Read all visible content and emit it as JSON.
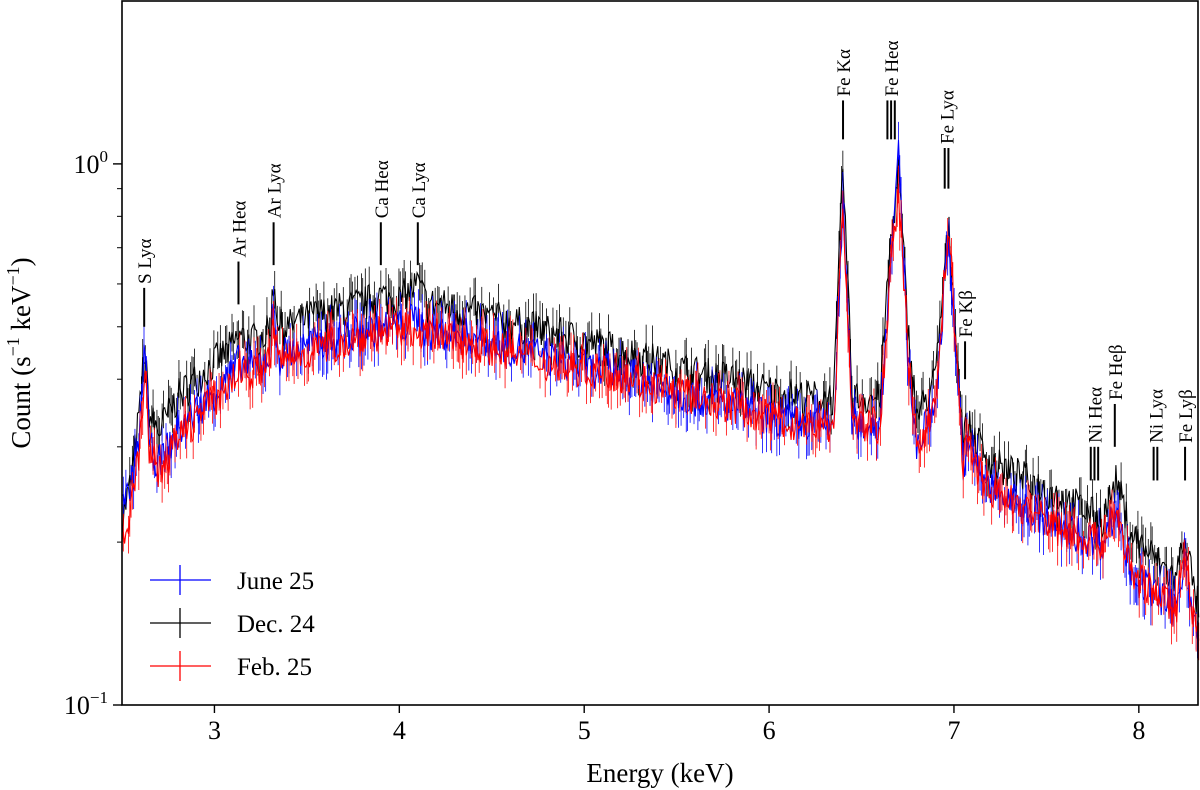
{
  "chart_data": {
    "type": "line",
    "title": "",
    "xlabel": "Energy (keV)",
    "ylabel": "Count (s⁻¹ keV⁻¹)",
    "ylabel_parts": {
      "base": "Count (s",
      "exp1": "−1",
      "mid": " keV",
      "exp2": "−1",
      "end": ")"
    },
    "xlim": [
      2.5,
      8.32
    ],
    "ylim": [
      0.1,
      2.0
    ],
    "yscale": "log",
    "grid": false,
    "legend_placement": "lower-left",
    "xticks": [
      {
        "value": 3,
        "label": "3"
      },
      {
        "value": 4,
        "label": "4"
      },
      {
        "value": 5,
        "label": "5"
      },
      {
        "value": 6,
        "label": "6"
      },
      {
        "value": 7,
        "label": "7"
      },
      {
        "value": 8,
        "label": "8"
      }
    ],
    "yticks": [
      {
        "value": 1.0,
        "base": "10",
        "exp": "0"
      },
      {
        "value": 0.1,
        "base": "10",
        "exp": "−1"
      }
    ],
    "x": [
      2.5,
      2.55,
      2.6,
      2.62,
      2.65,
      2.7,
      2.8,
      2.9,
      3.0,
      3.1,
      3.13,
      3.2,
      3.3,
      3.32,
      3.35,
      3.4,
      3.5,
      3.6,
      3.7,
      3.8,
      3.9,
      4.0,
      4.1,
      4.15,
      4.2,
      4.4,
      4.6,
      4.8,
      5.0,
      5.2,
      5.4,
      5.6,
      5.8,
      6.0,
      6.2,
      6.35,
      6.4,
      6.45,
      6.6,
      6.65,
      6.7,
      6.75,
      6.8,
      6.9,
      6.97,
      7.05,
      7.07,
      7.2,
      7.4,
      7.6,
      7.8,
      7.88,
      7.95,
      8.0,
      8.2,
      8.25,
      8.3,
      8.33
    ],
    "series": [
      {
        "name": "June 25",
        "color": "#0000ff",
        "values": [
          0.23,
          0.25,
          0.33,
          0.47,
          0.3,
          0.28,
          0.32,
          0.35,
          0.38,
          0.41,
          0.43,
          0.42,
          0.44,
          0.52,
          0.44,
          0.45,
          0.46,
          0.47,
          0.48,
          0.49,
          0.5,
          0.5,
          0.52,
          0.49,
          0.49,
          0.48,
          0.46,
          0.44,
          0.42,
          0.41,
          0.39,
          0.37,
          0.36,
          0.34,
          0.33,
          0.33,
          0.85,
          0.33,
          0.33,
          0.62,
          1.03,
          0.45,
          0.3,
          0.36,
          0.75,
          0.28,
          0.3,
          0.25,
          0.23,
          0.21,
          0.2,
          0.23,
          0.18,
          0.17,
          0.15,
          0.19,
          0.14,
          0.13
        ]
      },
      {
        "name": "Dec. 24",
        "color": "#000000",
        "values": [
          0.22,
          0.26,
          0.36,
          0.46,
          0.34,
          0.32,
          0.37,
          0.4,
          0.43,
          0.46,
          0.48,
          0.47,
          0.49,
          0.61,
          0.5,
          0.5,
          0.52,
          0.53,
          0.54,
          0.55,
          0.57,
          0.56,
          0.6,
          0.55,
          0.55,
          0.53,
          0.51,
          0.49,
          0.47,
          0.45,
          0.43,
          0.41,
          0.4,
          0.38,
          0.37,
          0.37,
          1.0,
          0.37,
          0.37,
          0.67,
          0.98,
          0.5,
          0.34,
          0.4,
          0.77,
          0.31,
          0.33,
          0.28,
          0.26,
          0.24,
          0.22,
          0.26,
          0.21,
          0.2,
          0.17,
          0.21,
          0.16,
          0.15
        ]
      },
      {
        "name": "Feb. 25",
        "color": "#ff0000",
        "values": [
          0.19,
          0.23,
          0.31,
          0.42,
          0.29,
          0.27,
          0.31,
          0.34,
          0.37,
          0.4,
          0.42,
          0.41,
          0.43,
          0.5,
          0.43,
          0.44,
          0.45,
          0.46,
          0.47,
          0.48,
          0.49,
          0.49,
          0.5,
          0.48,
          0.48,
          0.47,
          0.45,
          0.43,
          0.42,
          0.41,
          0.39,
          0.37,
          0.36,
          0.34,
          0.33,
          0.33,
          0.85,
          0.33,
          0.33,
          0.6,
          0.9,
          0.44,
          0.3,
          0.36,
          0.78,
          0.28,
          0.3,
          0.25,
          0.23,
          0.21,
          0.2,
          0.23,
          0.18,
          0.17,
          0.15,
          0.2,
          0.14,
          0.13
        ]
      }
    ],
    "annotations": [
      {
        "label": "S Lyα",
        "energies": [
          2.62
        ],
        "y_from": 0.5,
        "y_to": 0.59
      },
      {
        "label": "Ar Heα",
        "energies": [
          3.13
        ],
        "y_from": 0.55,
        "y_to": 0.66
      },
      {
        "label": "Ar Lyα",
        "energies": [
          3.32
        ],
        "y_from": 0.65,
        "y_to": 0.78
      },
      {
        "label": "Ca Heα",
        "energies": [
          3.9
        ],
        "y_from": 0.65,
        "y_to": 0.78
      },
      {
        "label": "Ca Lyα",
        "energies": [
          4.1
        ],
        "y_from": 0.65,
        "y_to": 0.78
      },
      {
        "label": "Fe Kα",
        "energies": [
          6.4
        ],
        "y_from": 1.11,
        "y_to": 1.31
      },
      {
        "label": "Fe Heα",
        "energies": [
          6.64,
          6.66,
          6.68
        ],
        "y_from": 1.11,
        "y_to": 1.31
      },
      {
        "label": "Fe Lyα",
        "energies": [
          6.95,
          6.97
        ],
        "y_from": 0.9,
        "y_to": 1.07
      },
      {
        "label": "Fe Kβ",
        "energies": [
          7.06
        ],
        "y_from": 0.4,
        "y_to": 0.47
      },
      {
        "label": "Ni Heα",
        "energies": [
          7.74,
          7.76,
          7.78
        ],
        "y_from": 0.26,
        "y_to": 0.3
      },
      {
        "label": "Fe Heβ",
        "energies": [
          7.87
        ],
        "y_from": 0.3,
        "y_to": 0.36
      },
      {
        "label": "Ni Lyα",
        "energies": [
          8.08,
          8.1
        ],
        "y_from": 0.26,
        "y_to": 0.3
      },
      {
        "label": "Fe Lyβ",
        "energies": [
          8.25
        ],
        "y_from": 0.26,
        "y_to": 0.3
      }
    ]
  }
}
